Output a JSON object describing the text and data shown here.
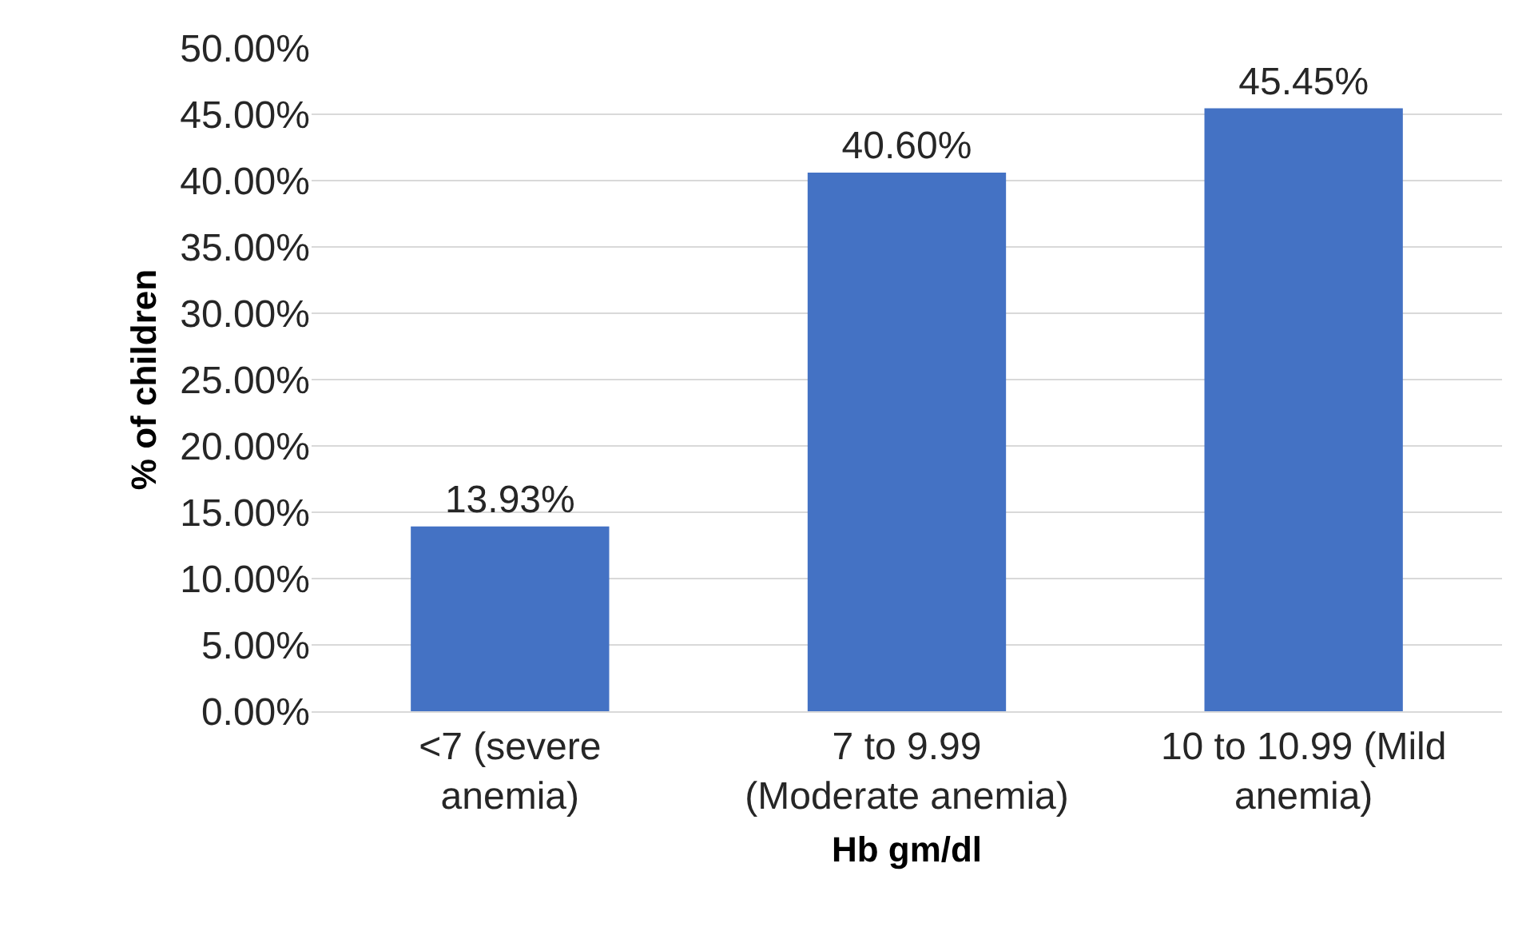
{
  "chart_data": {
    "type": "bar",
    "xlabel": "Hb gm/dl",
    "ylabel": "% of children",
    "categories": [
      "<7 (severe anemia)",
      "7 to 9.99 (Moderate anemia)",
      "10 to 10.99 (Mild anemia)"
    ],
    "values": [
      13.93,
      40.6,
      45.45
    ],
    "value_labels": [
      "13.93%",
      "40.60%",
      "45.45%"
    ],
    "color": "#4472c4",
    "ylim": [
      0,
      50
    ],
    "yticks": [
      {
        "value": 0,
        "label": "0.00%"
      },
      {
        "value": 5,
        "label": "5.00%"
      },
      {
        "value": 10,
        "label": "10.00%"
      },
      {
        "value": 15,
        "label": "15.00%"
      },
      {
        "value": 20,
        "label": "20.00%"
      },
      {
        "value": 25,
        "label": "25.00%"
      },
      {
        "value": 30,
        "label": "30.00%"
      },
      {
        "value": 35,
        "label": "35.00%"
      },
      {
        "value": 40,
        "label": "40.00%"
      },
      {
        "value": 45,
        "label": "45.00%"
      },
      {
        "value": 50,
        "label": "50.00%"
      }
    ],
    "grid": "y"
  }
}
